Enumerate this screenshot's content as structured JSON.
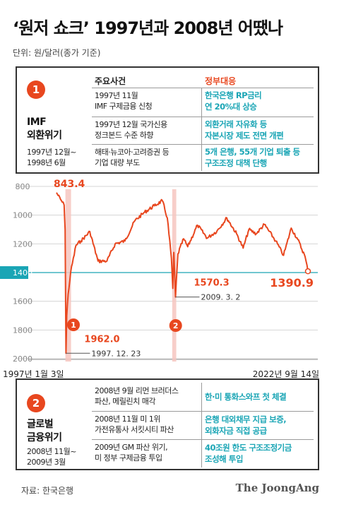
{
  "title": "‘원저 쇼크’ 1997년과 2008년 어땠나",
  "unit": "단위: 원/달러(종가 기준)",
  "panel1": {
    "badge": "1",
    "name_line1": "IMF",
    "name_line2": "외환위기",
    "period_line1": "1997년 12월~",
    "period_line2": "1998년 6월",
    "header_events": "주요사건",
    "header_gov": "정부대응",
    "rows": [
      {
        "ev1": "1997년 11월",
        "ev2": "IMF 구제금융 신청",
        "gv1": "한국은행 RP금리",
        "gv2": "연 20%대 상승"
      },
      {
        "ev1": "1997년 12월 국가신용",
        "ev2": "정크본드 수준 하향",
        "gv1": "외환거래 자유화 등",
        "gv2": "자본시장 제도 전면 개편"
      },
      {
        "ev1": "해태·뉴코아·고려증권 등",
        "ev2": "기업 대량 부도",
        "gv1": "5개 은행, 55개 기업 퇴출 등",
        "gv2": "구조조정 대책 단행"
      }
    ]
  },
  "panel2": {
    "badge": "2",
    "name_line1": "글로벌",
    "name_line2": "금융위기",
    "period_line1": "2008년 11월~",
    "period_line2": "2009년 3월",
    "rows": [
      {
        "ev1": "2008년 9월 리먼 브러더스",
        "ev2": "파산, 메릴린치 매각",
        "gv1": "한·미 통화스와프 첫 체결",
        "gv2": ""
      },
      {
        "ev1": "2008년 11월 미 1위",
        "ev2": "가전유통사 서킷시티 파산",
        "gv1": "은행 대외채무 지급 보증,",
        "gv2": "외화자금 직접 공급"
      },
      {
        "ev1": "2009년 GM 파산 위기,",
        "ev2": "미 정부 구제금융 투입",
        "gv1": "40조원 한도 구조조정기금",
        "gv2": "조성해 투입"
      }
    ]
  },
  "source": "자료: 한국은행",
  "brand": "The JoongAng",
  "colors": {
    "accent": "#e8471f",
    "teal": "#1aa5b5",
    "highlight": "#f6c6c0"
  },
  "chart_data": {
    "type": "line",
    "y_inverted": true,
    "ylim": [
      800,
      2000
    ],
    "yticks": [
      "800",
      "1000",
      "1200",
      "1400",
      "1600",
      "1800",
      "2000"
    ],
    "highlight_tick": "1400",
    "x_start_label": "1997년 1월 3일",
    "x_end_label": "2022년 9월 14일",
    "x_range": [
      "1997-01-03",
      "2022-09-14"
    ],
    "series": [
      {
        "values": [
          {
            "x": "1997-01-03",
            "y": 843.4
          },
          {
            "x": "1997-06-01",
            "y": 890
          },
          {
            "x": "1997-10-15",
            "y": 930
          },
          {
            "x": "1997-11-20",
            "y": 1100
          },
          {
            "x": "1997-12-23",
            "y": 1962.0
          },
          {
            "x": "1998-01-20",
            "y": 1700
          },
          {
            "x": "1998-03-15",
            "y": 1550
          },
          {
            "x": "1998-06-15",
            "y": 1400
          },
          {
            "x": "1998-12-31",
            "y": 1210
          },
          {
            "x": "1999-07-01",
            "y": 1180
          },
          {
            "x": "2000-06-01",
            "y": 1115
          },
          {
            "x": "2001-04-01",
            "y": 1320
          },
          {
            "x": "2002-03-01",
            "y": 1320
          },
          {
            "x": "2003-01-01",
            "y": 1200
          },
          {
            "x": "2004-01-01",
            "y": 1180
          },
          {
            "x": "2005-01-01",
            "y": 1040
          },
          {
            "x": "2006-01-01",
            "y": 980
          },
          {
            "x": "2007-01-01",
            "y": 935
          },
          {
            "x": "2007-10-31",
            "y": 900
          },
          {
            "x": "2008-05-01",
            "y": 1020
          },
          {
            "x": "2008-10-01",
            "y": 1300
          },
          {
            "x": "2008-11-24",
            "y": 1510
          },
          {
            "x": "2008-12-31",
            "y": 1260
          },
          {
            "x": "2009-03-02",
            "y": 1570.3
          },
          {
            "x": "2009-06-01",
            "y": 1270
          },
          {
            "x": "2009-12-31",
            "y": 1165
          },
          {
            "x": "2010-06-01",
            "y": 1220
          },
          {
            "x": "2011-06-01",
            "y": 1070
          },
          {
            "x": "2012-06-01",
            "y": 1160
          },
          {
            "x": "2013-06-01",
            "y": 1110
          },
          {
            "x": "2014-06-01",
            "y": 1020
          },
          {
            "x": "2015-06-01",
            "y": 1130
          },
          {
            "x": "2016-02-01",
            "y": 1230
          },
          {
            "x": "2016-09-01",
            "y": 1100
          },
          {
            "x": "2017-06-01",
            "y": 1130
          },
          {
            "x": "2018-04-01",
            "y": 1065
          },
          {
            "x": "2019-06-01",
            "y": 1180
          },
          {
            "x": "2020-03-19",
            "y": 1280
          },
          {
            "x": "2021-01-01",
            "y": 1090
          },
          {
            "x": "2021-09-01",
            "y": 1170
          },
          {
            "x": "2022-06-01",
            "y": 1290
          },
          {
            "x": "2022-09-14",
            "y": 1390.9
          }
        ]
      }
    ],
    "highlight_bands": [
      {
        "from": "1997-12-01",
        "to": "1998-06-30"
      },
      {
        "from": "2008-11-01",
        "to": "2009-03-31"
      }
    ],
    "annotations": [
      {
        "label": "843.4",
        "x": "1997-01-03",
        "y": 843.4,
        "sub": ""
      },
      {
        "label": "1962.0",
        "x": "1997-12-23",
        "y": 1962.0,
        "sub": "1997. 12. 23"
      },
      {
        "label": "1570.3",
        "x": "2009-03-02",
        "y": 1570.3,
        "sub": "2009. 3. 2"
      },
      {
        "label": "1390.9",
        "x": "2022-09-14",
        "y": 1390.9,
        "sub": ""
      }
    ],
    "markers": [
      {
        "label": "1",
        "x": "1998-03-01"
      },
      {
        "label": "2",
        "x": "2009-01-15"
      }
    ]
  }
}
